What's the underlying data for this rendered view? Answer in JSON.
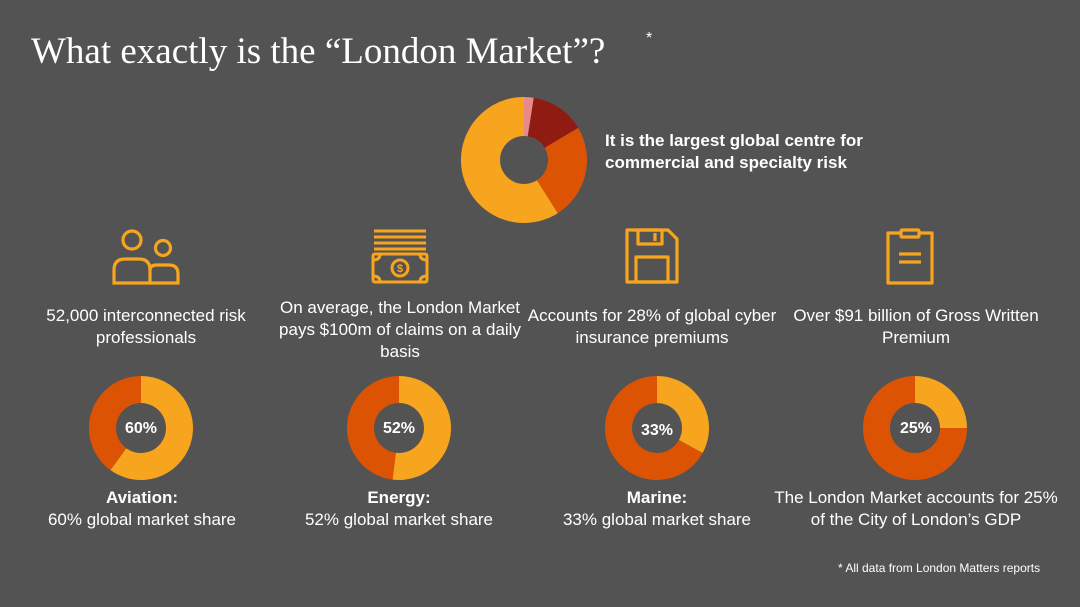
{
  "title": "What exactly is the “London Market”?",
  "title_star": "*",
  "colors": {
    "background": "#535353",
    "orange": "#F7A51E",
    "dark_orange": "#DD5304",
    "dark_red": "#8F1B12",
    "pink": "#E88A8A",
    "icon_orange": "#F7A51E"
  },
  "main": {
    "caption": "It is the largest global centre for commercial and specialty risk",
    "donut_segments": [
      {
        "color": "#E88A8A",
        "fraction": 0.025
      },
      {
        "color": "#8F1B12",
        "fraction": 0.14
      },
      {
        "color": "#DD5304",
        "fraction": 0.245
      },
      {
        "color": "#F7A51E",
        "fraction": 0.59
      }
    ]
  },
  "stats": [
    {
      "icon": "people-icon",
      "text": "52,000 interconnected risk professionals"
    },
    {
      "icon": "cash-icon",
      "text": "On average, the London Market pays $100m of claims on a daily basis"
    },
    {
      "icon": "floppy-disk-icon",
      "text": "Accounts for 28% of global cyber insurance premiums"
    },
    {
      "icon": "clipboard-icon",
      "text": "Over $91 billion of Gross Written Premium"
    }
  ],
  "shares": [
    {
      "pct_label": "60%",
      "value": 60,
      "title": "Aviation:",
      "text": "60% global market share"
    },
    {
      "pct_label": "52%",
      "value": 52,
      "title": "Energy:",
      "text": "52% global market share"
    },
    {
      "pct_label": "33%",
      "value": 33,
      "title": "Marine:",
      "text": "33% global market share"
    },
    {
      "pct_label": "25%",
      "value": 25,
      "title": "",
      "text": "The London Market accounts for 25% of the City of London’s GDP"
    }
  ],
  "footnote": "* All data from London Matters reports"
}
